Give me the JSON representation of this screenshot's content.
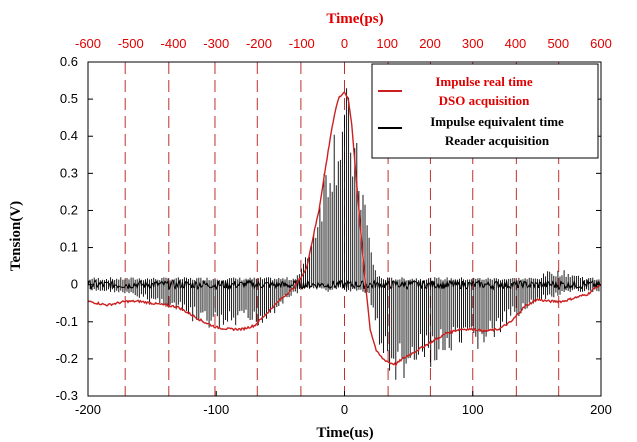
{
  "chart_data": {
    "type": "line",
    "title": "",
    "xlabel": "Time(us)",
    "ylabel": "Tension(V)",
    "xlim": [
      -200,
      200
    ],
    "ylim": [
      -0.3,
      0.6
    ],
    "x_ticks": [
      -200,
      -100,
      0,
      100,
      200
    ],
    "y_ticks": [
      -0.3,
      -0.2,
      -0.1,
      0,
      0.1,
      0.2,
      0.3,
      0.4,
      0.5,
      0.6
    ],
    "x2label": "Time(ps)",
    "x2_color": "#e00000",
    "x2_tick_labels": [
      "-600",
      "-500",
      "-400",
      "-300",
      "-200",
      "-100",
      "0",
      "100",
      "200",
      "300",
      "400",
      "500",
      "600"
    ],
    "x2_tick_positions_us": [
      -200,
      -166.7,
      -133.3,
      -100,
      -66.7,
      -33.3,
      0,
      33.3,
      66.7,
      100,
      133.3,
      166.7,
      200
    ],
    "vertical_lines_us": [
      -171,
      -137,
      -101,
      -68,
      -34,
      0,
      34,
      67,
      100,
      134,
      167
    ],
    "grid": false,
    "legend_position": "top-right",
    "series": [
      {
        "name": "Impulse real time DSO acquisition",
        "color": "#cc2020",
        "x": [
          -200,
          -185,
          -170,
          -160,
          -150,
          -140,
          -130,
          -120,
          -110,
          -100,
          -90,
          -80,
          -70,
          -60,
          -50,
          -40,
          -30,
          -20,
          -15,
          -10,
          -5,
          0,
          3,
          6,
          10,
          15,
          20,
          25,
          30,
          35,
          40,
          45,
          50,
          60,
          70,
          80,
          90,
          100,
          110,
          120,
          130,
          140,
          150,
          160,
          170,
          180,
          190,
          195,
          200
        ],
        "values": [
          -0.045,
          -0.055,
          -0.045,
          -0.045,
          -0.05,
          -0.055,
          -0.06,
          -0.08,
          -0.1,
          -0.115,
          -0.12,
          -0.12,
          -0.11,
          -0.075,
          -0.04,
          -0.01,
          0.04,
          0.2,
          0.31,
          0.42,
          0.5,
          0.52,
          0.5,
          0.42,
          0.25,
          0.05,
          -0.12,
          -0.18,
          -0.2,
          -0.21,
          -0.215,
          -0.2,
          -0.19,
          -0.17,
          -0.15,
          -0.13,
          -0.12,
          -0.12,
          -0.125,
          -0.12,
          -0.1,
          -0.06,
          -0.04,
          -0.045,
          -0.045,
          -0.035,
          -0.025,
          -0.01,
          0.0
        ]
      },
      {
        "name": "Impulse equivalent time Reader acquisition",
        "color": "#000000",
        "baseline": 0.0,
        "x": [
          -200,
          -190,
          -180,
          -170,
          -160,
          -150,
          -140,
          -130,
          -120,
          -110,
          -100,
          -90,
          -80,
          -70,
          -60,
          -50,
          -40,
          -35,
          -30,
          -25,
          -20,
          -15,
          -10,
          -5,
          -2,
          0,
          2,
          5,
          10,
          15,
          20,
          25,
          30,
          35,
          40,
          45,
          50,
          60,
          70,
          80,
          90,
          100,
          110,
          120,
          130,
          140,
          150,
          160,
          170,
          180,
          190,
          200
        ],
        "envelope_min": [
          -0.02,
          -0.02,
          -0.02,
          -0.03,
          -0.04,
          -0.05,
          -0.06,
          -0.08,
          -0.1,
          -0.12,
          -0.13,
          -0.13,
          -0.12,
          -0.12,
          -0.1,
          -0.06,
          -0.03,
          -0.02,
          -0.01,
          -0.01,
          -0.01,
          -0.02,
          -0.02,
          -0.01,
          -0.01,
          -0.02,
          -0.02,
          -0.02,
          -0.02,
          -0.02,
          -0.04,
          -0.14,
          -0.22,
          -0.26,
          -0.27,
          -0.28,
          -0.26,
          -0.24,
          -0.22,
          -0.21,
          -0.2,
          -0.19,
          -0.17,
          -0.15,
          -0.11,
          -0.07,
          -0.06,
          -0.04,
          -0.03,
          -0.02,
          -0.02,
          -0.02
        ],
        "envelope_max": [
          0.02,
          0.02,
          0.02,
          0.02,
          0.02,
          0.02,
          0.02,
          0.02,
          0.02,
          0.02,
          0.02,
          0.02,
          0.02,
          0.02,
          0.02,
          0.02,
          0.02,
          0.04,
          0.08,
          0.15,
          0.25,
          0.36,
          0.44,
          0.49,
          0.53,
          0.55,
          0.54,
          0.48,
          0.38,
          0.28,
          0.12,
          0.03,
          0.02,
          0.02,
          0.02,
          0.02,
          0.02,
          0.02,
          0.02,
          0.02,
          0.02,
          0.02,
          0.02,
          0.02,
          0.02,
          0.02,
          0.02,
          0.04,
          0.04,
          0.03,
          0.02,
          0.02
        ]
      }
    ]
  }
}
